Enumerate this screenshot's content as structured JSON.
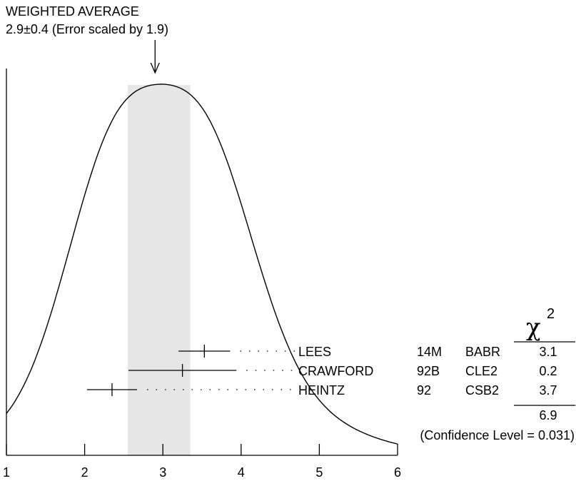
{
  "chart_data": {
    "type": "ideogram",
    "title_lines": [
      "WEIGHTED AVERAGE",
      "2.9±0.4 (Error scaled by 1.9)"
    ],
    "weighted_average": {
      "value": 2.9,
      "error": 0.4
    },
    "xlim": [
      1,
      6
    ],
    "xticks": [
      1,
      2,
      3,
      4,
      5,
      6
    ],
    "xtick_labels": [
      "1",
      "2",
      "3",
      "4",
      "5",
      "6"
    ],
    "shaded_band": [
      2.55,
      3.35
    ],
    "ideogram_scale": 1.9,
    "measurements": [
      {
        "author": "LEES",
        "year": "14M",
        "code": "BABR",
        "value": 3.53,
        "error": 0.33,
        "chi2": "3.1"
      },
      {
        "author": "CRAWFORD",
        "year": "92B",
        "code": "CLE2",
        "value": 3.25,
        "error": 0.69,
        "chi2": "0.2"
      },
      {
        "author": "HEINTZ",
        "year": "92",
        "code": "CSB2",
        "value": 2.35,
        "error": 0.32,
        "chi2": "3.7"
      }
    ],
    "chi2_header": "χ",
    "chi2_superscript": "2",
    "chi2_total": "6.9",
    "confidence_text": "(Confidence Level = 0.031)",
    "grid": false,
    "legend": "none"
  }
}
